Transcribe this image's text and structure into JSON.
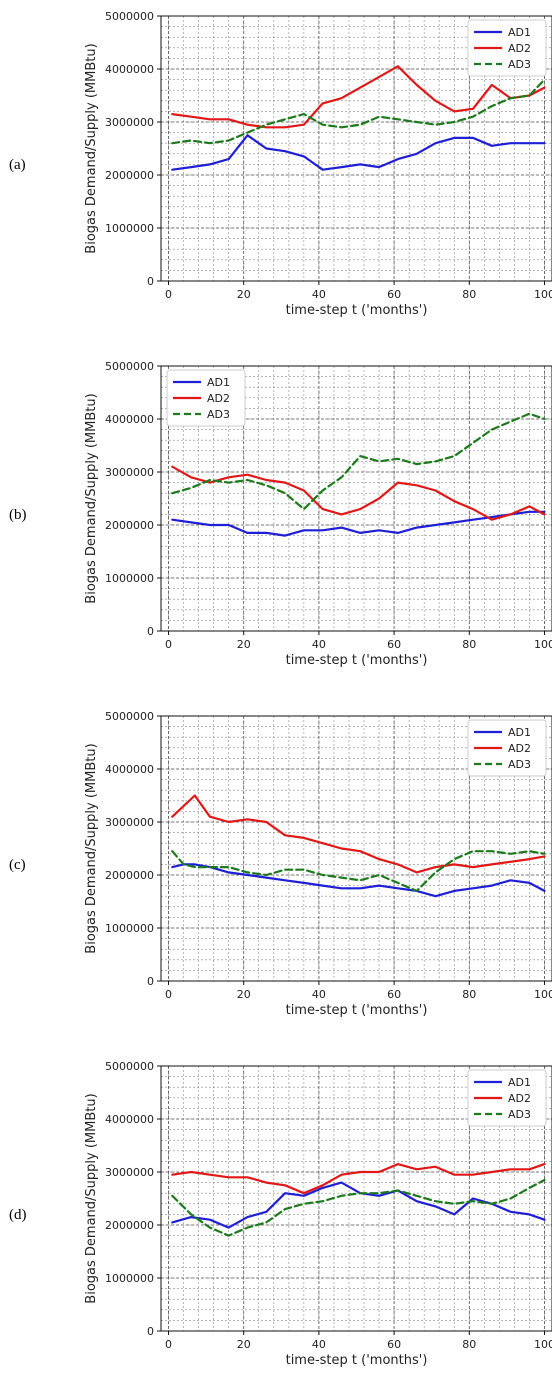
{
  "chart_data": [
    {
      "panel_label": "(a)",
      "type": "line",
      "xlabel": "time-step t ('months')",
      "ylabel": "Biogas Demand/Supply (MMBtu)",
      "xlim": [
        -2,
        102
      ],
      "ylim": [
        0,
        5000000
      ],
      "xticks": [
        0,
        20,
        40,
        60,
        80,
        100
      ],
      "yticks": [
        0,
        1000000,
        2000000,
        3000000,
        4000000,
        5000000
      ],
      "grid": true,
      "legend_position": "top-right",
      "x": [
        1,
        6,
        11,
        16,
        21,
        26,
        31,
        36,
        41,
        46,
        51,
        56,
        61,
        66,
        71,
        76,
        81,
        86,
        91,
        96,
        100
      ],
      "series": [
        {
          "name": "AD1",
          "color": "#1f1fd6",
          "style": "solid",
          "values": [
            2100000,
            2150000,
            2200000,
            2300000,
            2750000,
            2500000,
            2450000,
            2350000,
            2100000,
            2150000,
            2200000,
            2150000,
            2300000,
            2400000,
            2600000,
            2700000,
            2700000,
            2550000,
            2600000,
            2600000,
            2600000
          ]
        },
        {
          "name": "AD2",
          "color": "#e01818",
          "style": "solid",
          "values": [
            3150000,
            3100000,
            3050000,
            3050000,
            2950000,
            2900000,
            2900000,
            2950000,
            3350000,
            3450000,
            3650000,
            3850000,
            4050000,
            3700000,
            3400000,
            3200000,
            3250000,
            3700000,
            3450000,
            3500000,
            3650000
          ]
        },
        {
          "name": "AD3",
          "color": "#1d7a1d",
          "style": "dashed",
          "values": [
            2600000,
            2650000,
            2600000,
            2650000,
            2800000,
            2950000,
            3050000,
            3150000,
            2950000,
            2900000,
            2950000,
            3100000,
            3050000,
            3000000,
            2950000,
            3000000,
            3100000,
            3300000,
            3450000,
            3500000,
            3800000
          ]
        }
      ]
    },
    {
      "panel_label": "(b)",
      "type": "line",
      "xlabel": "time-step t ('months')",
      "ylabel": "Biogas Demand/Supply (MMBtu)",
      "xlim": [
        -2,
        102
      ],
      "ylim": [
        0,
        5000000
      ],
      "xticks": [
        0,
        20,
        40,
        60,
        80,
        100
      ],
      "yticks": [
        0,
        1000000,
        2000000,
        3000000,
        4000000,
        5000000
      ],
      "grid": true,
      "legend_position": "top-left",
      "x": [
        1,
        6,
        11,
        16,
        21,
        26,
        31,
        36,
        41,
        46,
        51,
        56,
        61,
        66,
        71,
        76,
        81,
        86,
        91,
        96,
        100
      ],
      "series": [
        {
          "name": "AD1",
          "color": "#1f1fd6",
          "style": "solid",
          "values": [
            2100000,
            2050000,
            2000000,
            2000000,
            1850000,
            1850000,
            1800000,
            1900000,
            1900000,
            1950000,
            1850000,
            1900000,
            1850000,
            1950000,
            2000000,
            2050000,
            2100000,
            2150000,
            2200000,
            2250000,
            2250000
          ]
        },
        {
          "name": "AD2",
          "color": "#e01818",
          "style": "solid",
          "values": [
            3100000,
            2900000,
            2800000,
            2900000,
            2950000,
            2850000,
            2800000,
            2650000,
            2300000,
            2200000,
            2300000,
            2500000,
            2800000,
            2750000,
            2650000,
            2450000,
            2300000,
            2100000,
            2200000,
            2350000,
            2200000
          ]
        },
        {
          "name": "AD3",
          "color": "#1d7a1d",
          "style": "dashed",
          "values": [
            2600000,
            2700000,
            2850000,
            2800000,
            2850000,
            2750000,
            2600000,
            2300000,
            2650000,
            2900000,
            3300000,
            3200000,
            3250000,
            3150000,
            3200000,
            3300000,
            3550000,
            3800000,
            3950000,
            4100000,
            4000000
          ]
        }
      ]
    },
    {
      "panel_label": "(c)",
      "type": "line",
      "xlabel": "time-step t ('months')",
      "ylabel": "Biogas Demand/Supply (MMBtu)",
      "xlim": [
        -2,
        102
      ],
      "ylim": [
        0,
        5000000
      ],
      "xticks": [
        0,
        20,
        40,
        60,
        80,
        100
      ],
      "yticks": [
        0,
        1000000,
        2000000,
        3000000,
        4000000,
        5000000
      ],
      "grid": true,
      "legend_position": "top-right",
      "x": [
        1,
        4,
        7,
        11,
        16,
        21,
        26,
        31,
        36,
        41,
        46,
        51,
        56,
        61,
        66,
        71,
        76,
        81,
        86,
        91,
        96,
        100
      ],
      "series": [
        {
          "name": "AD1",
          "color": "#1f1fd6",
          "style": "solid",
          "values": [
            2150000,
            2200000,
            2200000,
            2150000,
            2050000,
            2000000,
            1950000,
            1900000,
            1850000,
            1800000,
            1750000,
            1750000,
            1800000,
            1750000,
            1700000,
            1600000,
            1700000,
            1750000,
            1800000,
            1900000,
            1850000,
            1700000
          ]
        },
        {
          "name": "AD2",
          "color": "#e01818",
          "style": "solid",
          "values": [
            3100000,
            3300000,
            3500000,
            3100000,
            3000000,
            3050000,
            3000000,
            2750000,
            2700000,
            2600000,
            2500000,
            2450000,
            2300000,
            2200000,
            2050000,
            2150000,
            2200000,
            2150000,
            2200000,
            2250000,
            2300000,
            2350000
          ]
        },
        {
          "name": "AD3",
          "color": "#1d7a1d",
          "style": "dashed",
          "values": [
            2450000,
            2200000,
            2150000,
            2150000,
            2150000,
            2050000,
            2000000,
            2100000,
            2100000,
            2000000,
            1950000,
            1900000,
            2000000,
            1850000,
            1700000,
            2050000,
            2300000,
            2450000,
            2450000,
            2400000,
            2450000,
            2400000
          ]
        }
      ]
    },
    {
      "panel_label": "(d)",
      "type": "line",
      "xlabel": "time-step t ('months')",
      "ylabel": "Biogas Demand/Supply (MMBtu)",
      "xlim": [
        -2,
        102
      ],
      "ylim": [
        0,
        5000000
      ],
      "xticks": [
        0,
        20,
        40,
        60,
        80,
        100
      ],
      "yticks": [
        0,
        1000000,
        2000000,
        3000000,
        4000000,
        5000000
      ],
      "grid": true,
      "legend_position": "top-right",
      "x": [
        1,
        6,
        11,
        16,
        21,
        26,
        31,
        36,
        41,
        46,
        51,
        56,
        61,
        66,
        71,
        76,
        81,
        86,
        91,
        96,
        100
      ],
      "series": [
        {
          "name": "AD1",
          "color": "#1f1fd6",
          "style": "solid",
          "values": [
            2050000,
            2150000,
            2100000,
            1950000,
            2150000,
            2250000,
            2600000,
            2550000,
            2700000,
            2800000,
            2600000,
            2550000,
            2650000,
            2450000,
            2350000,
            2200000,
            2500000,
            2400000,
            2250000,
            2200000,
            2100000
          ]
        },
        {
          "name": "AD2",
          "color": "#e01818",
          "style": "solid",
          "values": [
            2950000,
            3000000,
            2950000,
            2900000,
            2900000,
            2800000,
            2750000,
            2600000,
            2750000,
            2950000,
            3000000,
            3000000,
            3150000,
            3050000,
            3100000,
            2950000,
            2950000,
            3000000,
            3050000,
            3050000,
            3150000
          ]
        },
        {
          "name": "AD3",
          "color": "#1d7a1d",
          "style": "dashed",
          "values": [
            2550000,
            2200000,
            1950000,
            1800000,
            1950000,
            2050000,
            2300000,
            2400000,
            2450000,
            2550000,
            2600000,
            2600000,
            2650000,
            2550000,
            2450000,
            2400000,
            2450000,
            2400000,
            2500000,
            2700000,
            2850000
          ]
        }
      ]
    }
  ]
}
